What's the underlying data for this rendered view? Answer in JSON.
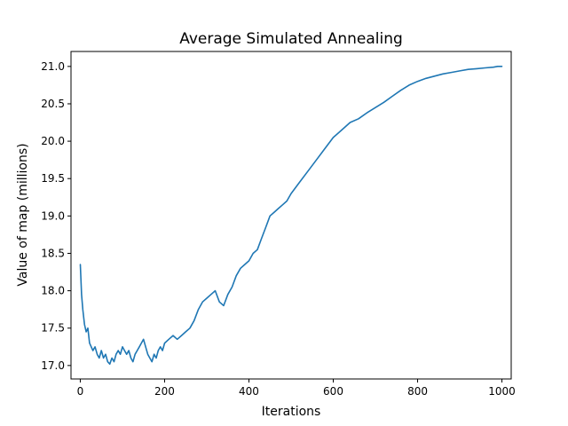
{
  "chart_data": {
    "type": "line",
    "title": "Average Simulated Annealing",
    "xlabel": "Iterations",
    "ylabel": "Value of map (millions)",
    "xlim": [
      -22,
      1022
    ],
    "ylim": [
      16.82,
      21.2
    ],
    "grid": false,
    "legend": "none",
    "xticks": [
      0,
      200,
      400,
      600,
      800,
      1000
    ],
    "xtick_labels": [
      "0",
      "200",
      "400",
      "600",
      "800",
      "1000"
    ],
    "yticks": [
      17.0,
      17.5,
      18.0,
      18.5,
      19.0,
      19.5,
      20.0,
      20.5,
      21.0
    ],
    "ytick_labels": [
      "17.0",
      "17.5",
      "18.0",
      "18.5",
      "19.0",
      "19.5",
      "20.0",
      "20.5",
      "21.0"
    ],
    "series": [
      {
        "color": "#1f77b4",
        "x": [
          0,
          3,
          6,
          10,
          14,
          18,
          22,
          26,
          30,
          35,
          40,
          45,
          50,
          55,
          60,
          65,
          70,
          75,
          80,
          85,
          90,
          95,
          100,
          105,
          110,
          115,
          120,
          125,
          130,
          135,
          140,
          145,
          150,
          155,
          160,
          165,
          170,
          175,
          180,
          185,
          190,
          195,
          200,
          210,
          220,
          230,
          240,
          250,
          260,
          270,
          280,
          290,
          300,
          310,
          320,
          330,
          340,
          350,
          360,
          370,
          380,
          390,
          400,
          410,
          420,
          430,
          440,
          450,
          460,
          470,
          480,
          490,
          500,
          520,
          540,
          560,
          580,
          600,
          620,
          640,
          660,
          680,
          700,
          720,
          740,
          760,
          780,
          800,
          820,
          840,
          860,
          880,
          900,
          920,
          940,
          960,
          980,
          990,
          1000
        ],
        "y": [
          18.35,
          17.95,
          17.75,
          17.55,
          17.45,
          17.5,
          17.3,
          17.25,
          17.2,
          17.25,
          17.15,
          17.1,
          17.2,
          17.1,
          17.15,
          17.05,
          17.02,
          17.1,
          17.05,
          17.15,
          17.2,
          17.15,
          17.25,
          17.2,
          17.15,
          17.2,
          17.1,
          17.05,
          17.15,
          17.2,
          17.25,
          17.3,
          17.35,
          17.25,
          17.15,
          17.1,
          17.05,
          17.15,
          17.1,
          17.2,
          17.25,
          17.2,
          17.3,
          17.35,
          17.4,
          17.35,
          17.4,
          17.45,
          17.5,
          17.6,
          17.75,
          17.85,
          17.9,
          17.95,
          18.0,
          17.85,
          17.8,
          17.95,
          18.05,
          18.2,
          18.3,
          18.35,
          18.4,
          18.5,
          18.55,
          18.7,
          18.85,
          19.0,
          19.05,
          19.1,
          19.15,
          19.2,
          19.3,
          19.45,
          19.6,
          19.75,
          19.9,
          20.05,
          20.15,
          20.25,
          20.3,
          20.38,
          20.45,
          20.52,
          20.6,
          20.68,
          20.75,
          20.8,
          20.84,
          20.87,
          20.9,
          20.92,
          20.94,
          20.96,
          20.97,
          20.98,
          20.99,
          21.0,
          21.0
        ]
      }
    ]
  }
}
